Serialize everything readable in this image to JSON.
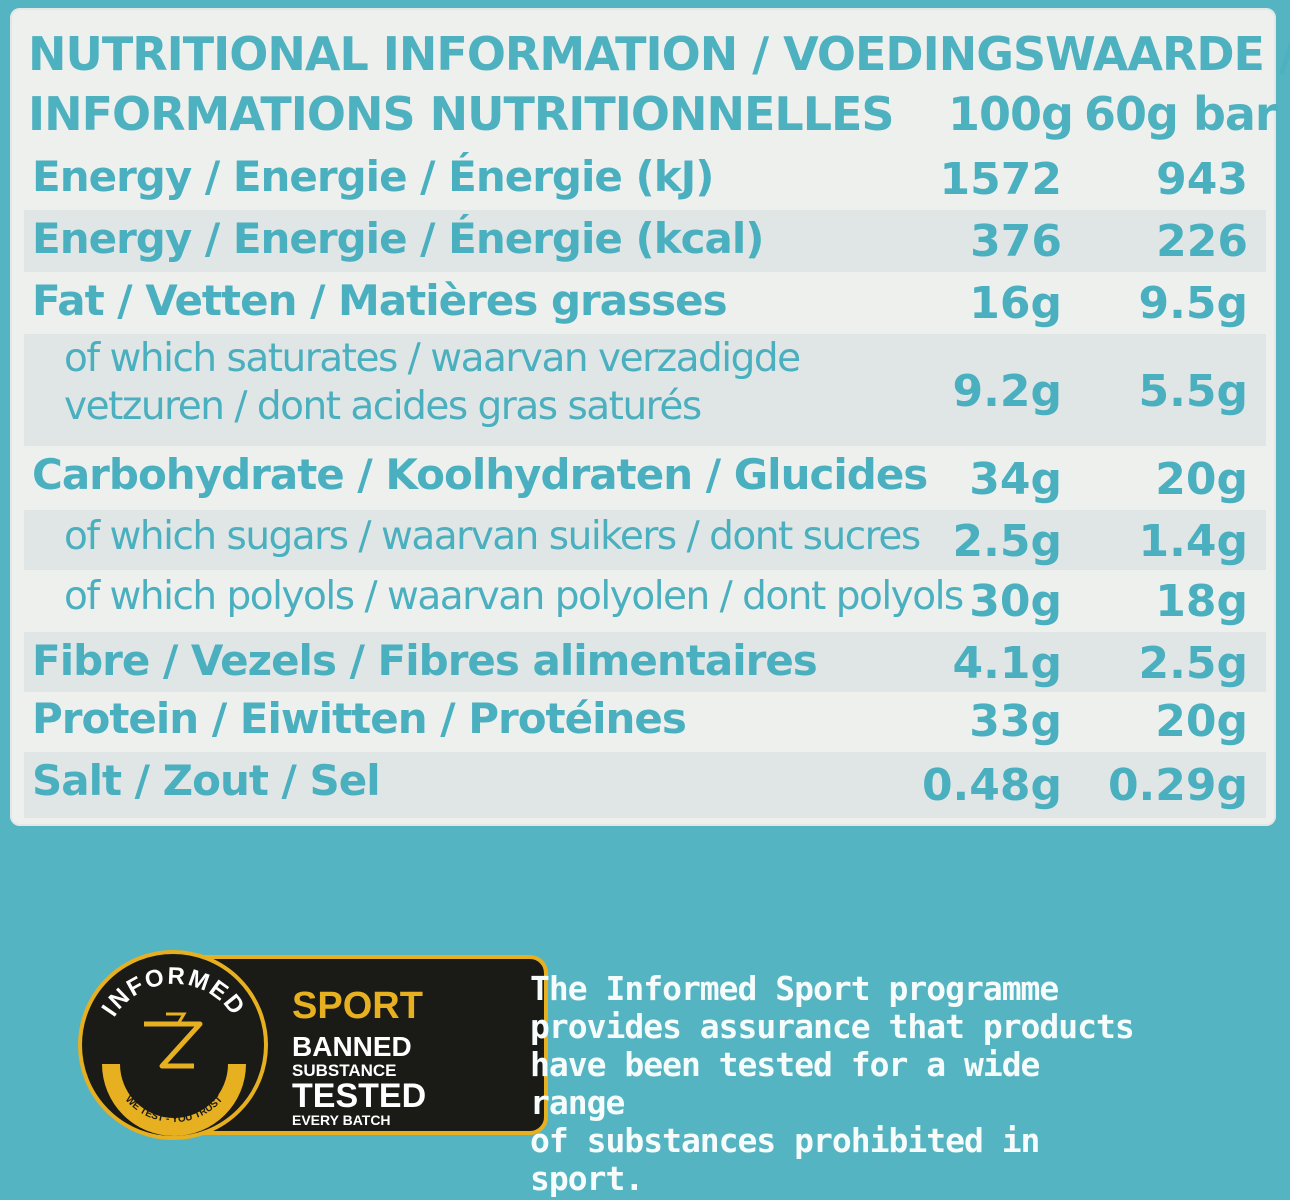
{
  "header": {
    "line1": "NUTRITIONAL INFORMATION / VOEDINGSWAARDE /",
    "line2": "INFORMATIONS NUTRITIONNELLES",
    "col1": "100g",
    "col2": "60g bar"
  },
  "rows": [
    {
      "label": "Energy / Energie / Énergie (kJ)",
      "v1": "1572",
      "v2": "943"
    },
    {
      "label": "Energy / Energie  / Énergie (kcal)",
      "v1": "376",
      "v2": "226"
    },
    {
      "label": "Fat / Vetten / Matières grasses",
      "v1": "16g",
      "v2": "9.5g"
    },
    {
      "label1": "of which saturates / waarvan verzadigde",
      "label2": "vetzuren / dont acides gras saturés",
      "v1": "9.2g",
      "v2": "5.5g"
    },
    {
      "label": "Carbohydrate / Koolhydraten / Glucides",
      "v1": "34g",
      "v2": "20g"
    },
    {
      "label": "of which sugars / waarvan suikers / dont sucres",
      "v1": "2.5g",
      "v2": "1.4g"
    },
    {
      "label": "of which polyols / waarvan polyolen / dont polyols",
      "v1": "30g",
      "v2": "18g"
    },
    {
      "label": "Fibre / Vezels / Fibres alimentaires",
      "v1": "4.1g",
      "v2": "2.5g"
    },
    {
      "label": "Protein / Eiwitten / Protéines",
      "v1": "33g",
      "v2": "20g"
    },
    {
      "label": "Salt / Zout / Sel",
      "v1": "0.48g",
      "v2": "0.29g"
    }
  ],
  "logo": {
    "informed": "INFORMED",
    "tagline": "WE TEST - YOU TRUST",
    "sport": "SPORT",
    "banned": "BANNED",
    "substance": "SUBSTANCE",
    "tested": "TESTED",
    "every_batch": "EVERY BATCH"
  },
  "description": {
    "line1": "The Informed Sport programme",
    "line2": "provides assurance that products",
    "line3": "have been tested for a wide range",
    "line4": "of substances prohibited in sport."
  },
  "colors": {
    "background": "#54b4c2",
    "panel": "#eef0ee",
    "text": "#4aafbf",
    "logo_gold": "#e6b021"
  }
}
